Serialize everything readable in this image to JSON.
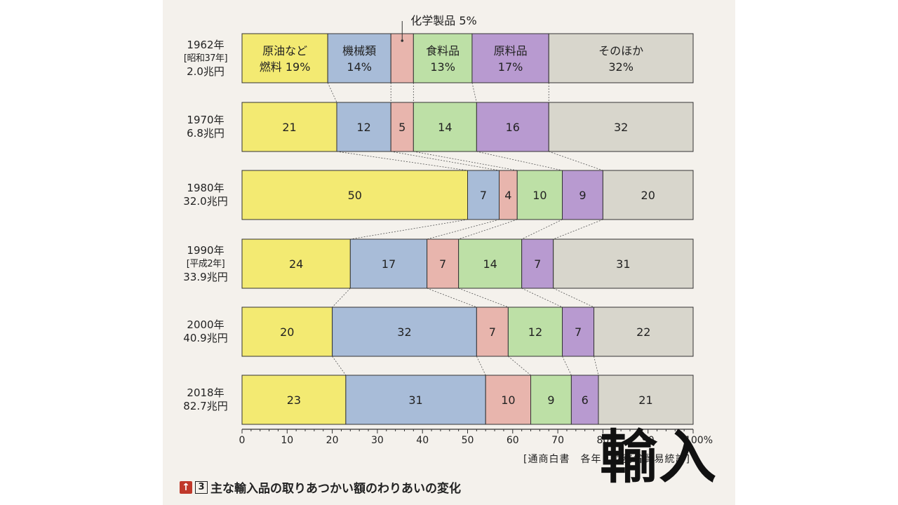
{
  "chart_data": {
    "type": "bar",
    "orientation": "horizontal",
    "stacked": "percent",
    "categories": [
      {
        "year": "1962年",
        "era": "[昭和37年]",
        "total": "2.0兆円"
      },
      {
        "year": "1970年",
        "era": "",
        "total": "6.8兆円"
      },
      {
        "year": "1980年",
        "era": "",
        "total": "32.0兆円"
      },
      {
        "year": "1990年",
        "era": "[平成2年]",
        "total": "33.9兆円"
      },
      {
        "year": "2000年",
        "era": "",
        "total": "40.9兆円"
      },
      {
        "year": "2018年",
        "era": "",
        "total": "82.7兆円"
      }
    ],
    "series": [
      {
        "name": "原油など燃料",
        "color": "#f3ea72",
        "values": [
          19,
          21,
          50,
          24,
          20,
          23
        ]
      },
      {
        "name": "機械類",
        "color": "#a8bcd8",
        "values": [
          14,
          12,
          7,
          17,
          32,
          31
        ]
      },
      {
        "name": "化学製品",
        "color": "#e8b5ad",
        "values": [
          5,
          5,
          4,
          7,
          7,
          10
        ]
      },
      {
        "name": "食料品",
        "color": "#bde0a6",
        "values": [
          13,
          14,
          10,
          14,
          12,
          9
        ]
      },
      {
        "name": "原料品",
        "color": "#b89ad0",
        "values": [
          17,
          16,
          9,
          7,
          7,
          6
        ]
      },
      {
        "name": "そのほか",
        "color": "#d8d6cc",
        "values": [
          32,
          32,
          20,
          31,
          22,
          21
        ]
      }
    ],
    "first_row_labels": [
      [
        "原油など",
        "燃料 19%"
      ],
      [
        "機械類",
        "14%"
      ],
      [],
      [
        "食料品",
        "13%"
      ],
      [
        "原料品",
        "17%"
      ],
      [
        "そのほか",
        "32%"
      ]
    ],
    "callout": "化学製品 5%",
    "x_ticks": [
      "0",
      "10",
      "20",
      "30",
      "40",
      "50",
      "60",
      "70",
      "80",
      "90",
      "100%"
    ],
    "xlim": [
      0,
      100
    ]
  },
  "source": "[通商白書　各年　財務省貿易統計]",
  "caption": {
    "arrow": "↑",
    "number": "3",
    "text": "主な輸入品の取りあつかい額のわりあいの変化"
  },
  "big_title": "輸入"
}
